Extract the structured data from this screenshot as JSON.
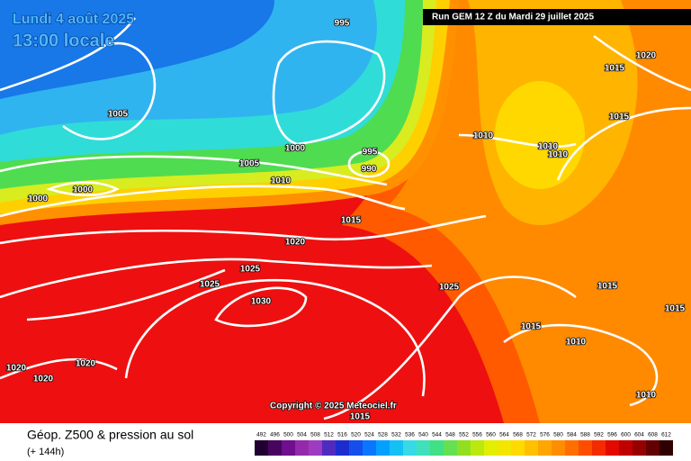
{
  "header": {
    "date": "Lundi 4 août 2025",
    "time": "13:00 locale"
  },
  "run_banner": "Run GEM 12 Z du Mardi 29 juillet 2025",
  "copyright": "Copyright © 2025 Meteociel.fr",
  "isobar_labels": [
    "995",
    "1005",
    "1000",
    "995",
    "990",
    "1005",
    "1010",
    "1000",
    "1000",
    "1015",
    "1020",
    "1025",
    "1025",
    "1030",
    "1025",
    "1020",
    "1020",
    "1020",
    "1015",
    "1010",
    "1010",
    "1010",
    "1015",
    "1020",
    "1015",
    "1015",
    "1015",
    "1010",
    "1010",
    "1015"
  ],
  "footer": {
    "title": "Géop. Z500 & pression au sol",
    "subtitle": "(+ 144h)"
  },
  "colorbar": {
    "values": [
      492,
      496,
      500,
      504,
      508,
      512,
      516,
      520,
      524,
      528,
      532,
      536,
      540,
      544,
      548,
      552,
      556,
      560,
      564,
      568,
      572,
      576,
      580,
      584,
      588,
      592,
      596,
      600,
      604,
      608,
      612
    ]
  }
}
